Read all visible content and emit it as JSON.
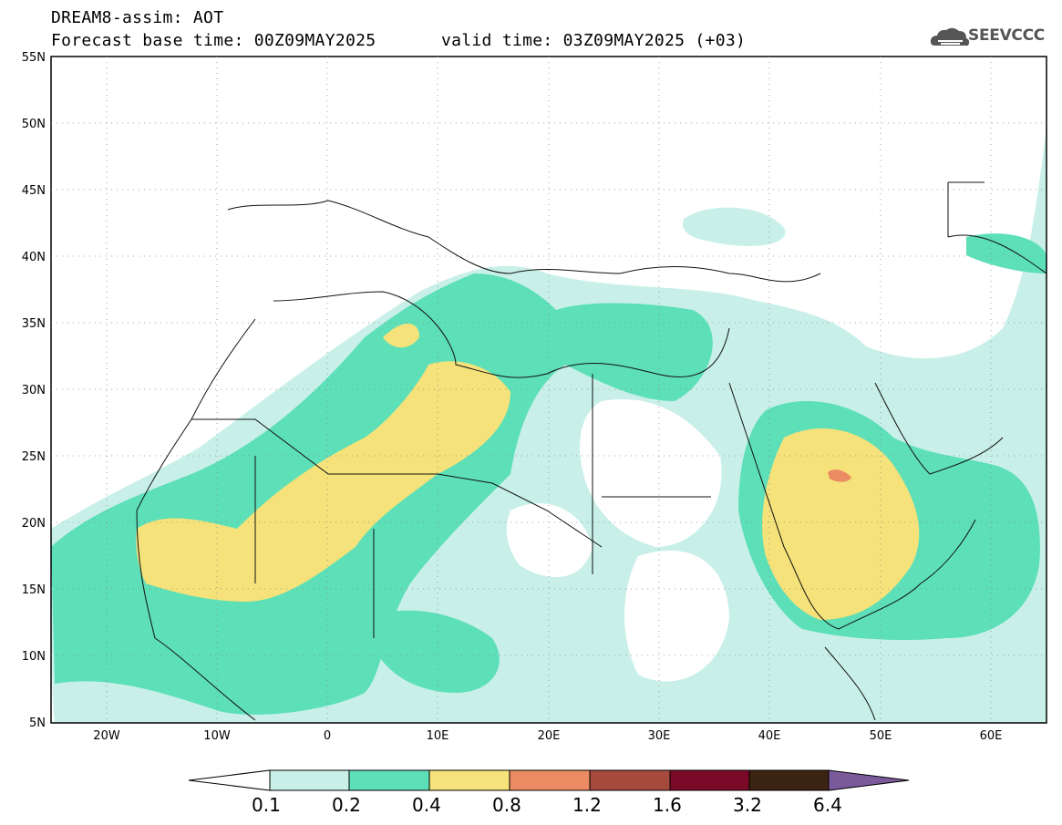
{
  "title": {
    "line1": "DREAM8-assim: AOT",
    "base": "Forecast base time: 00Z09MAY2025",
    "valid": "valid time: 03Z09MAY2025 (+03)"
  },
  "logo": {
    "text": "SEEVCCC",
    "icon": "cloud-icon"
  },
  "map": {
    "lat_labels": [
      "55N",
      "50N",
      "45N",
      "40N",
      "35N",
      "30N",
      "25N",
      "20N",
      "15N",
      "10N",
      "5N"
    ],
    "lon_labels": [
      "20W",
      "10W",
      "0",
      "10E",
      "20E",
      "30E",
      "40E",
      "50E",
      "60E"
    ],
    "extent": {
      "lon": [
        -25,
        65
      ],
      "lat": [
        5,
        55
      ]
    }
  },
  "colorbar": {
    "ticks": [
      "0.1",
      "0.2",
      "0.4",
      "0.8",
      "1.2",
      "1.6",
      "3.2",
      "6.4"
    ],
    "colors": [
      "#ffffff",
      "#c8f0e8",
      "#5ddfb8",
      "#f5e27a",
      "#eb8b63",
      "#a54a3c",
      "#7a0a28",
      "#3b2412",
      "#7b5a9c"
    ]
  },
  "chart_data": {
    "type": "heatmap",
    "title": "DREAM8-assim: AOT",
    "levels": [
      0.1,
      0.2,
      0.4,
      0.8,
      1.2,
      1.6,
      3.2,
      6.4
    ],
    "xlim": [
      -25,
      65
    ],
    "ylim": [
      5,
      55
    ]
  }
}
